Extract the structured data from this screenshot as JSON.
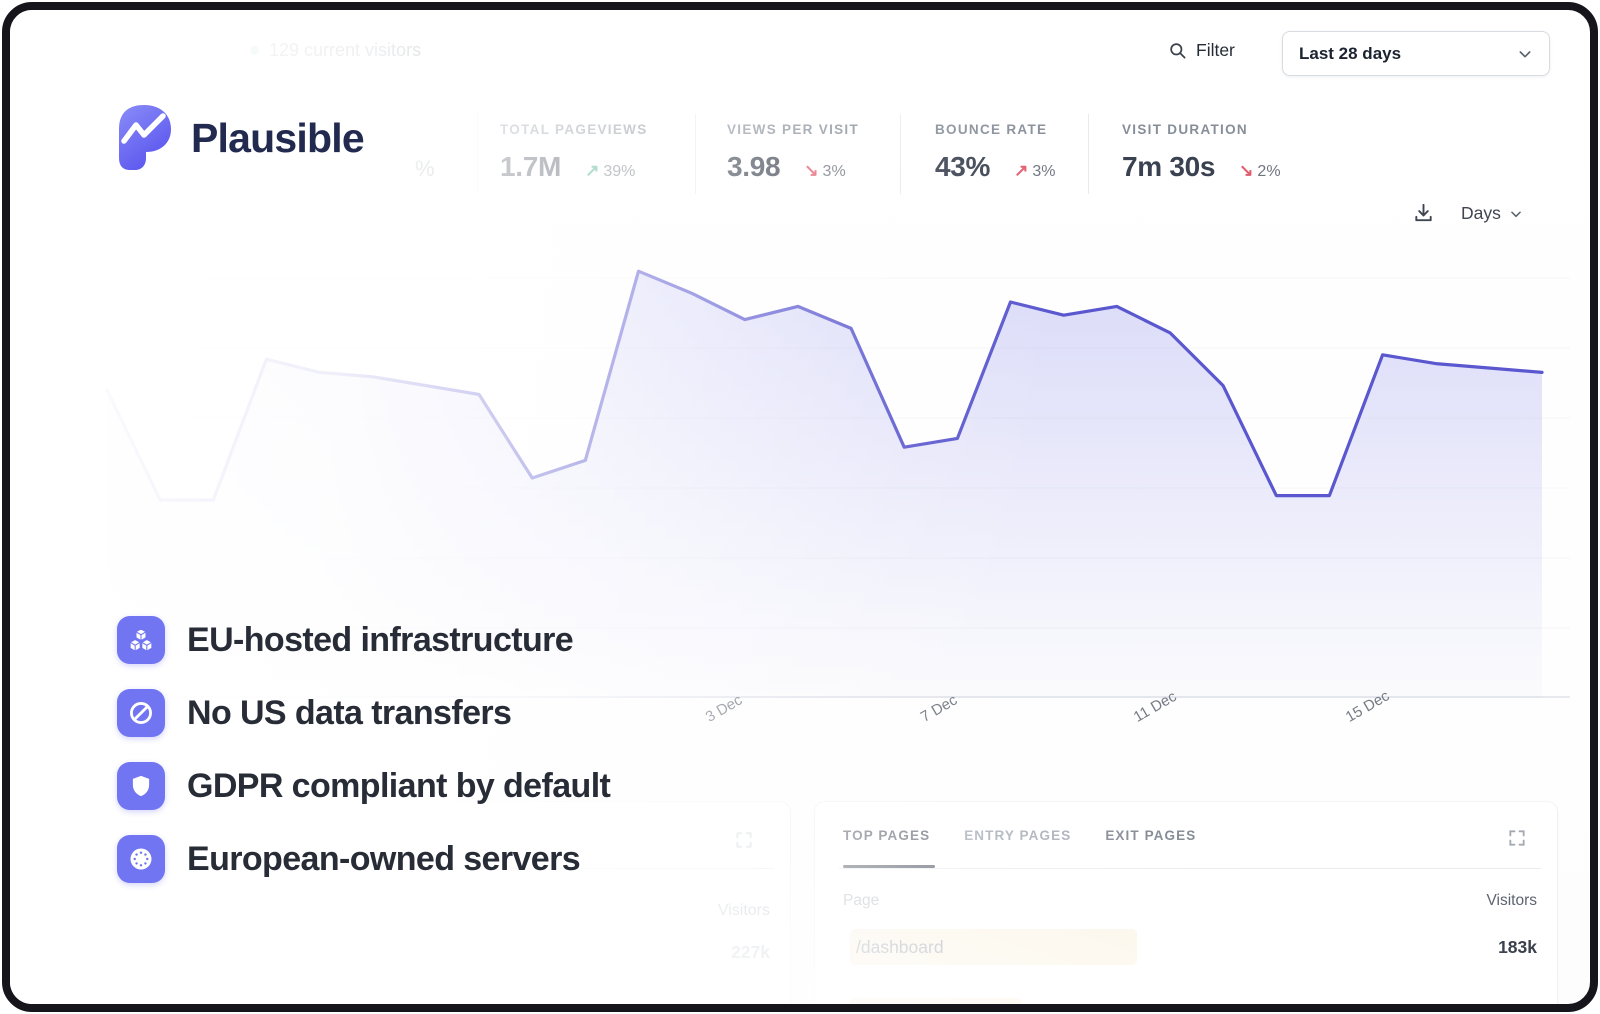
{
  "topbar": {
    "current_visitors": "129 current visitors",
    "filter_label": "Filter",
    "date_range": "Last 28 days"
  },
  "brand": {
    "name": "Plausible"
  },
  "background": {
    "stray_percent": "%"
  },
  "stats": [
    {
      "label": "TOTAL PAGEVIEWS",
      "value": "1.7M",
      "arrow": "↗",
      "change": "39%",
      "positive": true
    },
    {
      "label": "VIEWS PER VISIT",
      "value": "3.98",
      "arrow": "↘",
      "change": "3%",
      "positive": false
    },
    {
      "label": "BOUNCE RATE",
      "value": "43%",
      "arrow": "↗",
      "change": "3%",
      "positive": false
    },
    {
      "label": "VISIT DURATION",
      "value": "7m 30s",
      "arrow": "↘",
      "change": "2%",
      "positive": false
    }
  ],
  "chart_controls": {
    "interval": "Days"
  },
  "chart_data": {
    "type": "area",
    "series": [
      {
        "name": "Visitors",
        "values": [
          70,
          45,
          45,
          77,
          74,
          73,
          71,
          69,
          50,
          54,
          97,
          92,
          86,
          89,
          84,
          57,
          59,
          90,
          87,
          89,
          83,
          71,
          46,
          46,
          78,
          76,
          75,
          74
        ]
      }
    ],
    "x_tick_labels": [
      "3 Dec",
      "7 Dec",
      "11 Dec",
      "15 Dec"
    ],
    "ylim": [
      0,
      100
    ],
    "grid": "horizontal-faint",
    "legend": false,
    "line_color": "#5a57cf",
    "fill_color": "rgba(101,103,228,0.22)"
  },
  "features": [
    {
      "icon": "cubes-icon",
      "label": "EU-hosted infrastructure"
    },
    {
      "icon": "no-symbol-icon",
      "label": "No US data transfers"
    },
    {
      "icon": "shield-icon",
      "label": "GDPR compliant by default"
    },
    {
      "icon": "eu-stars-icon",
      "label": "European-owned servers"
    }
  ],
  "left_panel": {
    "visitors_column": "Visitors",
    "top_value": "227k"
  },
  "pages_panel": {
    "tabs": [
      {
        "label": "TOP PAGES",
        "active": true
      },
      {
        "label": "ENTRY PAGES",
        "active": false
      },
      {
        "label": "EXIT PAGES",
        "active": false
      }
    ],
    "page_column": "Page",
    "visitors_column": "Visitors",
    "rows": [
      {
        "page": "/dashboard",
        "visitors": "183k"
      }
    ]
  },
  "colors": {
    "accent_line": "#5a57cf",
    "feature_icon_bg": "#7175f1",
    "positive_green": "#3fa884",
    "negative_red": "#e25c6d",
    "row_bar": "#fbf4e4",
    "current_visitors_dot": "#4cc38a"
  }
}
